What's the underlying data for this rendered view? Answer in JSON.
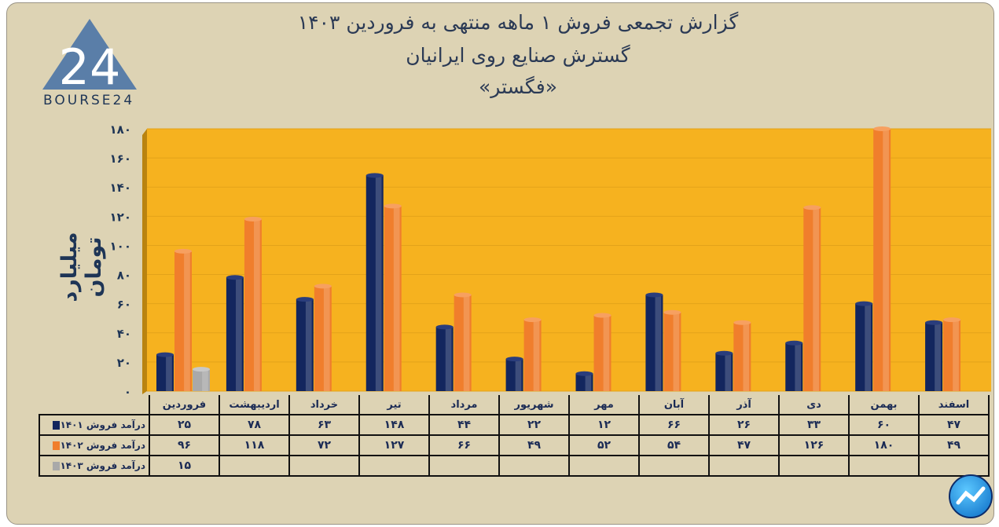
{
  "header": {
    "title_line1": "گزارش تجمعی فروش ۱ ماهه منتهی به فروردین ۱۴۰۳",
    "title_line2": "گسترش صنایع روی ایرانیان",
    "title_line3": "«فگستر»"
  },
  "logo": {
    "text": "BOURSE24",
    "mark": "24"
  },
  "colors": {
    "series_1401": "#13265e",
    "series_1402": "#f07e2c",
    "series_1403": "#a9a9a9",
    "plot_bg": "#f6b21f",
    "background": "#ddd3b4"
  },
  "chart_data": {
    "type": "bar",
    "title": "گزارش تجمعی فروش ۱ ماهه منتهی به فروردین ۱۴۰۳",
    "ylabel": "میلیارد تومان",
    "ylim": [
      0,
      180
    ],
    "yticks": [
      "۰",
      "۲۰",
      "۴۰",
      "۶۰",
      "۸۰",
      "۱۰۰",
      "۱۲۰",
      "۱۴۰",
      "۱۶۰",
      "۱۸۰"
    ],
    "grid": true,
    "categories": [
      "فروردین",
      "اردیبهشت",
      "خرداد",
      "تیر",
      "مرداد",
      "شهریور",
      "مهر",
      "آبان",
      "آذر",
      "دی",
      "بهمن",
      "اسفند"
    ],
    "series": [
      {
        "name": "درآمد فروش ۱۴۰۱",
        "color": "#13265e",
        "values": [
          25,
          78,
          63,
          148,
          44,
          22,
          12,
          66,
          26,
          33,
          60,
          47
        ],
        "labels": [
          "۲۵",
          "۷۸",
          "۶۳",
          "۱۴۸",
          "۴۴",
          "۲۲",
          "۱۲",
          "۶۶",
          "۲۶",
          "۳۳",
          "۶۰",
          "۴۷"
        ]
      },
      {
        "name": "درآمد فروش ۱۴۰۲",
        "color": "#f07e2c",
        "values": [
          96,
          118,
          72,
          127,
          66,
          49,
          52,
          54,
          47,
          126,
          180,
          49
        ],
        "labels": [
          "۹۶",
          "۱۱۸",
          "۷۲",
          "۱۲۷",
          "۶۶",
          "۴۹",
          "۵۲",
          "۵۴",
          "۴۷",
          "۱۲۶",
          "۱۸۰",
          "۴۹"
        ]
      },
      {
        "name": "درآمد فروش ۱۴۰۳",
        "color": "#a9a9a9",
        "values": [
          15,
          null,
          null,
          null,
          null,
          null,
          null,
          null,
          null,
          null,
          null,
          null
        ],
        "labels": [
          "۱۵",
          "",
          "",
          "",
          "",
          "",
          "",
          "",
          "",
          "",
          "",
          ""
        ]
      }
    ]
  }
}
